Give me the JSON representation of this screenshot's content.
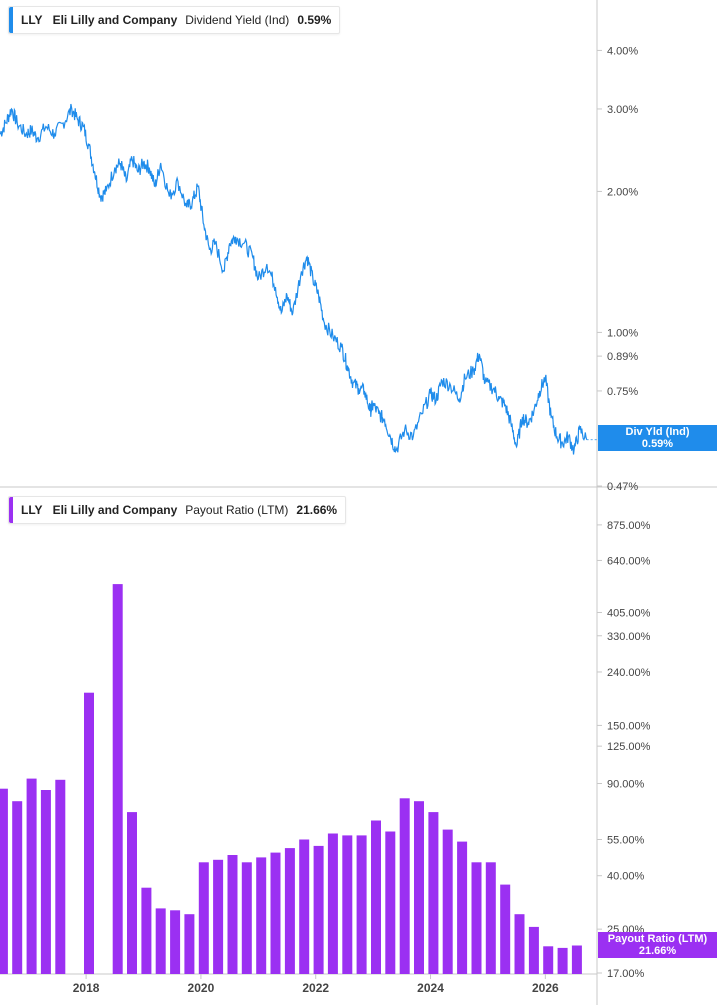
{
  "colors": {
    "yield": "#1f8ceb",
    "payout": "#9b30f2",
    "axis": "#c8c8c8",
    "text": "#444444"
  },
  "panels": {
    "yield": {
      "ticker": "LLY",
      "company": "Eli Lilly and Company",
      "metric": "Dividend Yield (Ind)",
      "value": "0.59%",
      "flag_label": "Div Yld (Ind)",
      "flag_value": "0.59%"
    },
    "payout": {
      "ticker": "LLY",
      "company": "Eli Lilly and Company",
      "metric": "Payout Ratio (LTM)",
      "value": "21.66%",
      "flag_label": "Payout Ratio (LTM)",
      "flag_value": "21.66%"
    }
  },
  "chart_data": [
    {
      "type": "line",
      "title": "Dividend Yield (Ind)",
      "y_scale": "log",
      "ylim": [
        0.47,
        4.6
      ],
      "xlim": [
        2016.5,
        2026.9
      ],
      "y_ticks": [
        {
          "value": 4.0,
          "label": "4.00%"
        },
        {
          "value": 3.0,
          "label": "3.00%"
        },
        {
          "value": 2.0,
          "label": "2.00%"
        },
        {
          "value": 1.0,
          "label": "1.00%"
        },
        {
          "value": 0.89,
          "label": "0.89%"
        },
        {
          "value": 0.75,
          "label": "0.75%"
        },
        {
          "value": 0.47,
          "label": "0.47%"
        }
      ],
      "series": [
        {
          "x": [
            2016.5,
            2016.6,
            2016.7,
            2016.8,
            2016.95,
            2017.05,
            2017.15,
            2017.3,
            2017.45,
            2017.6,
            2017.75,
            2017.85,
            2017.95,
            2018.05,
            2018.15,
            2018.25,
            2018.35,
            2018.5,
            2018.6,
            2018.7,
            2018.8,
            2018.9,
            2019.0,
            2019.1,
            2019.2,
            2019.3,
            2019.45,
            2019.6,
            2019.75,
            2019.85,
            2019.95,
            2020.05,
            2020.15,
            2020.25,
            2020.4,
            2020.5,
            2020.6,
            2020.75,
            2020.9,
            2021.0,
            2021.15,
            2021.3,
            2021.4,
            2021.5,
            2021.6,
            2021.75,
            2021.85,
            2021.95,
            2022.05,
            2022.15,
            2022.3,
            2022.45,
            2022.55,
            2022.65,
            2022.75,
            2022.85,
            2022.95,
            2023.0,
            2023.1,
            2023.2,
            2023.3,
            2023.4,
            2023.55,
            2023.7,
            2023.85,
            2024.0,
            2024.1,
            2024.2,
            2024.35,
            2024.5,
            2024.6,
            2024.75,
            2024.85,
            2024.95,
            2025.1,
            2025.2,
            2025.3,
            2025.4,
            2025.5,
            2025.6,
            2025.7,
            2025.8,
            2025.9,
            2026.0,
            2026.1,
            2026.2,
            2026.3,
            2026.4,
            2026.5,
            2026.6,
            2026.72
          ],
          "y": [
            2.65,
            2.8,
            3.0,
            2.8,
            2.65,
            2.7,
            2.6,
            2.75,
            2.65,
            2.8,
            3.0,
            2.85,
            2.75,
            2.5,
            2.2,
            1.95,
            2.0,
            2.25,
            2.3,
            2.1,
            2.35,
            2.2,
            2.3,
            2.25,
            2.05,
            2.3,
            1.95,
            2.1,
            1.85,
            1.9,
            2.05,
            1.7,
            1.5,
            1.55,
            1.35,
            1.55,
            1.6,
            1.55,
            1.45,
            1.3,
            1.4,
            1.25,
            1.1,
            1.2,
            1.1,
            1.35,
            1.45,
            1.3,
            1.2,
            1.05,
            0.98,
            0.93,
            0.85,
            0.78,
            0.76,
            0.75,
            0.68,
            0.7,
            0.67,
            0.65,
            0.6,
            0.56,
            0.62,
            0.6,
            0.67,
            0.74,
            0.72,
            0.79,
            0.77,
            0.72,
            0.8,
            0.83,
            0.9,
            0.78,
            0.76,
            0.72,
            0.7,
            0.64,
            0.57,
            0.66,
            0.64,
            0.68,
            0.75,
            0.8,
            0.66,
            0.6,
            0.58,
            0.6,
            0.56,
            0.62,
            0.59
          ]
        }
      ]
    },
    {
      "type": "bar",
      "title": "Payout Ratio (LTM)",
      "y_scale": "log",
      "ylim": [
        17,
        980
      ],
      "xlim": [
        2016.5,
        2026.9
      ],
      "y_ticks": [
        {
          "value": 875,
          "label": "875.00%"
        },
        {
          "value": 640,
          "label": "640.00%"
        },
        {
          "value": 405,
          "label": "405.00%"
        },
        {
          "value": 330,
          "label": "330.00%"
        },
        {
          "value": 240,
          "label": "240.00%"
        },
        {
          "value": 150,
          "label": "150.00%"
        },
        {
          "value": 125,
          "label": "125.00%"
        },
        {
          "value": 90,
          "label": "90.00%"
        },
        {
          "value": 55,
          "label": "55.00%"
        },
        {
          "value": 40,
          "label": "40.00%"
        },
        {
          "value": 25,
          "label": "25.00%"
        },
        {
          "value": 17,
          "label": "17.00%"
        }
      ],
      "x_ticks": [
        {
          "value": 2018,
          "label": "2018"
        },
        {
          "value": 2020,
          "label": "2020"
        },
        {
          "value": 2022,
          "label": "2022"
        },
        {
          "value": 2024,
          "label": "2024"
        },
        {
          "value": 2026,
          "label": "2026"
        }
      ],
      "series": [
        {
          "x": [
            2016.55,
            2016.8,
            2017.05,
            2017.3,
            2017.55,
            2017.8,
            2018.05,
            2018.3,
            2018.55,
            2018.8,
            2019.05,
            2019.3,
            2019.55,
            2019.8,
            2020.05,
            2020.3,
            2020.55,
            2020.8,
            2021.05,
            2021.3,
            2021.55,
            2021.8,
            2022.05,
            2022.3,
            2022.55,
            2022.8,
            2023.05,
            2023.3,
            2023.55,
            2023.8,
            2024.05,
            2024.3,
            2024.55,
            2024.8,
            2025.05,
            2025.3,
            2025.55,
            2025.8,
            2026.05,
            2026.3,
            2026.55
          ],
          "y": [
            86,
            77,
            94,
            85,
            93,
            0,
            200,
            0,
            520,
            70,
            36,
            30,
            29.5,
            28.5,
            45,
            46,
            48,
            45,
            47,
            49,
            51,
            55,
            52,
            58,
            57,
            57,
            65,
            59,
            79,
            77,
            70,
            60,
            54,
            45,
            45,
            37,
            28.5,
            25.5,
            21.5,
            21.2,
            21.66
          ]
        }
      ]
    }
  ]
}
